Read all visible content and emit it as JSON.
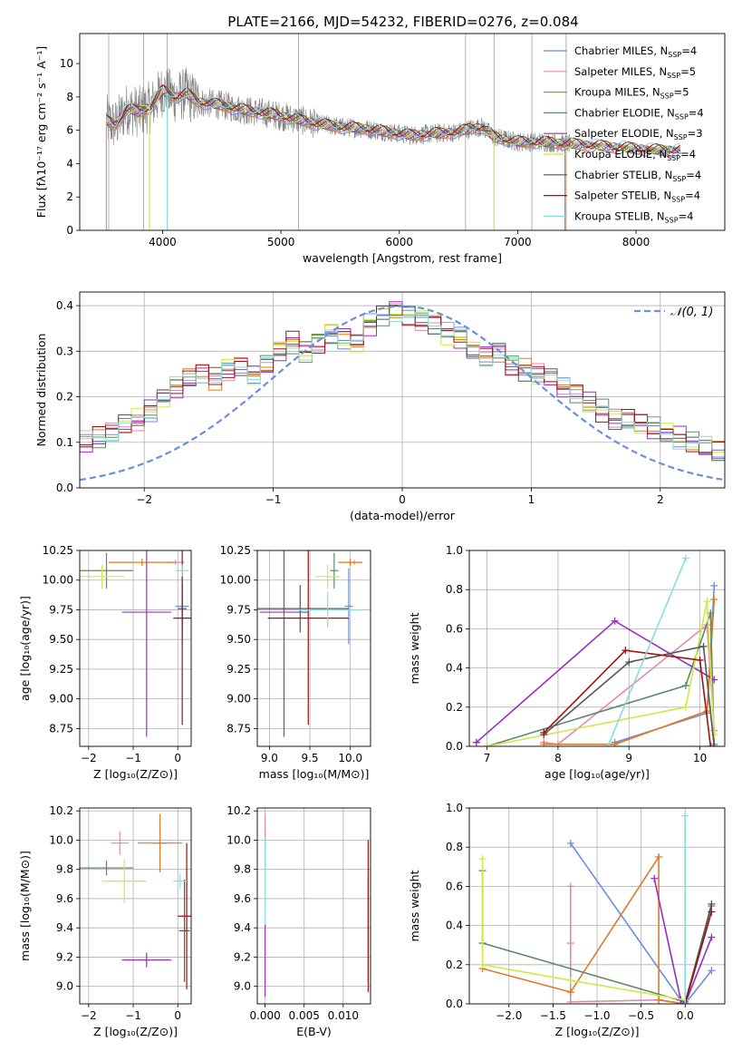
{
  "figure_title": "PLATE=2166, MJD=54232, FIBERID=0276, z=0.084",
  "colors": {
    "Chabrier MILES": "#6a8ee0",
    "Salpeter MILES": "#e08ab0",
    "Kroupa MILES": "#e07a22",
    "Chabrier ELODIE": "#5f8a66",
    "Salpeter ELODIE": "#9a2cc4",
    "Kroupa ELODIE": "#cfe84a",
    "Chabrier STELIB": "#555555",
    "Salpeter STELIB": "#9b1313",
    "Kroupa STELIB": "#86dede",
    "gaussian": "#6a8ee0",
    "data": "#808080"
  },
  "chart_data": [
    {
      "id": "spectrum",
      "type": "line",
      "xlabel": "wavelength [Angstrom, rest frame]",
      "ylabel": "Flux [fλ10⁻¹⁷ erg cm⁻² s⁻¹ A⁻¹]",
      "xlim": [
        3300,
        8750
      ],
      "ylim": [
        0,
        11.8
      ],
      "xticks": [
        4000,
        5000,
        6000,
        7000,
        8000
      ],
      "yticks": [
        0,
        2,
        4,
        6,
        8,
        10
      ],
      "legend_position": "right",
      "legend": [
        {
          "name": "Chabrier MILES",
          "nssp": "4"
        },
        {
          "name": "Salpeter MILES",
          "nssp": "5"
        },
        {
          "name": "Kroupa MILES",
          "nssp": "5"
        },
        {
          "name": "Chabrier ELODIE",
          "nssp": "4"
        },
        {
          "name": "Salpeter ELODIE",
          "nssp": "3"
        },
        {
          "name": "Kroupa ELODIE",
          "nssp": "4"
        },
        {
          "name": "Chabrier STELIB",
          "nssp": "4"
        },
        {
          "name": "Salpeter STELIB",
          "nssp": "4"
        },
        {
          "name": "Kroupa STELIB",
          "nssp": "4"
        }
      ],
      "model_continuum": {
        "x": [
          3520,
          3600,
          3700,
          3800,
          3900,
          4000,
          4100,
          4200,
          4300,
          4500,
          4700,
          4900,
          5100,
          5300,
          5500,
          5700,
          5900,
          6100,
          6300,
          6500,
          6600,
          6700,
          6800,
          7000,
          7200,
          7400,
          7600,
          7800,
          8000,
          8200
        ],
        "y": [
          6.6,
          6.3,
          7.3,
          7.1,
          7.4,
          8.4,
          8.0,
          8.2,
          7.7,
          7.5,
          7.2,
          7.0,
          6.7,
          6.4,
          6.2,
          6.1,
          5.9,
          5.7,
          5.8,
          5.9,
          6.1,
          6.2,
          5.6,
          5.3,
          5.3,
          5.2,
          5.1,
          5.0,
          4.9,
          4.8
        ]
      }
    },
    {
      "id": "residuals",
      "type": "step",
      "xlabel": "(data-model)/error",
      "ylabel": "Normed distribution",
      "xlim": [
        -2.5,
        2.5
      ],
      "ylim": [
        0,
        0.43
      ],
      "xticks": [
        -2,
        -1,
        0,
        1,
        2
      ],
      "yticks": [
        0.0,
        0.1,
        0.2,
        0.3,
        0.4
      ],
      "bin_width": 0.1,
      "gaussian_label": "𝒩(0, 1)",
      "legend_position": "top-right",
      "base_histogram": [
        0.07,
        0.08,
        0.09,
        0.08,
        0.09,
        0.1,
        0.11,
        0.12,
        0.14,
        0.15,
        0.17,
        0.2,
        0.22,
        0.24,
        0.25,
        0.24,
        0.26,
        0.27,
        0.25,
        0.27,
        0.3,
        0.32,
        0.3,
        0.32,
        0.34,
        0.33,
        0.32,
        0.36,
        0.38,
        0.39,
        0.38,
        0.37,
        0.36,
        0.34,
        0.33,
        0.3,
        0.29,
        0.3,
        0.27,
        0.26,
        0.25,
        0.24,
        0.22,
        0.21,
        0.19,
        0.17,
        0.15,
        0.15,
        0.14,
        0.13,
        0.12,
        0.11,
        0.1,
        0.09,
        0.08,
        0.07,
        0.06,
        0.05,
        0.05,
        0.04
      ]
    },
    {
      "id": "age-vs-Z",
      "type": "errorbar",
      "xlabel": "Z [log₁₀(Z/Z⊙)]",
      "ylabel": "age  [log₁₀(age/yr)]",
      "xlim": [
        -2.2,
        0.3
      ],
      "ylim": [
        8.6,
        10.25
      ],
      "xticks": [
        -2,
        -1,
        0
      ],
      "yticks": [
        8.75,
        9.0,
        9.25,
        9.5,
        9.75,
        10.0,
        10.25
      ],
      "points": [
        {
          "series": "Chabrier MILES",
          "x": 0.1,
          "xerr": 0.15,
          "y": 9.78,
          "yerr": 0.32
        },
        {
          "series": "Salpeter MILES",
          "x": -0.05,
          "xerr": 0.2,
          "y": 10.15,
          "yerr": 0.02
        },
        {
          "series": "Kroupa MILES",
          "x": -0.8,
          "xerr": 0.75,
          "y": 10.15,
          "yerr": 0.03
        },
        {
          "series": "Chabrier ELODIE",
          "x": -1.6,
          "xerr": 0.6,
          "y": 10.08,
          "yerr": 0.15
        },
        {
          "series": "Salpeter ELODIE",
          "x": -0.7,
          "xerr": 0.55,
          "y": 9.73,
          "yerr": 1.05
        },
        {
          "series": "Kroupa ELODIE",
          "x": -1.7,
          "xerr": 0.5,
          "y": 10.03,
          "yerr": 0.1
        },
        {
          "series": "Chabrier STELIB",
          "x": 0.1,
          "xerr": 0.1,
          "y": 9.76,
          "yerr": 0.2
        },
        {
          "series": "Salpeter STELIB",
          "x": 0.1,
          "xerr": 0.2,
          "y": 9.68,
          "yerr": 0.9
        },
        {
          "series": "Kroupa STELIB",
          "x": 0.1,
          "xerr": 0.15,
          "y": 10.08,
          "yerr": 0.05
        }
      ]
    },
    {
      "id": "age-vs-mass",
      "type": "errorbar",
      "xlabel": "mass [log₁₀(M/M⊙)]",
      "ylabel": "",
      "xlim": [
        8.85,
        10.25
      ],
      "ylim": [
        8.6,
        10.25
      ],
      "xticks": [
        9.0,
        9.5,
        10.0
      ],
      "yticks": [
        8.75,
        9.0,
        9.25,
        9.5,
        9.75,
        10.0,
        10.25
      ],
      "points": [
        {
          "series": "Chabrier MILES",
          "x": 9.98,
          "xerr": 0.05,
          "y": 9.78,
          "yerr": 0.32
        },
        {
          "series": "Salpeter MILES",
          "x": 10.05,
          "xerr": 0.08,
          "y": 10.15,
          "yerr": 0.02
        },
        {
          "series": "Kroupa MILES",
          "x": 10.0,
          "xerr": 0.15,
          "y": 10.15,
          "yerr": 0.03
        },
        {
          "series": "Chabrier ELODIE",
          "x": 9.8,
          "xerr": 0.05,
          "y": 10.08,
          "yerr": 0.15
        },
        {
          "series": "Salpeter ELODIE",
          "x": 9.18,
          "xerr": 0.3,
          "y": 9.73,
          "yerr": 1.05
        },
        {
          "series": "Kroupa ELODIE",
          "x": 9.72,
          "xerr": 0.15,
          "y": 10.03,
          "yerr": 0.1
        },
        {
          "series": "Chabrier STELIB",
          "x": 9.38,
          "xerr": 0.6,
          "y": 9.76,
          "yerr": 0.2
        },
        {
          "series": "Salpeter STELIB",
          "x": 9.48,
          "xerr": 0.5,
          "y": 9.68,
          "yerr": 0.9
        },
        {
          "series": "Kroupa STELIB",
          "x": 9.72,
          "xerr": 0.4,
          "y": 9.75,
          "yerr": 0.15
        }
      ]
    },
    {
      "id": "weight-vs-age",
      "type": "line",
      "xlabel": "age  [log₁₀(age/yr)]",
      "ylabel": "mass weight",
      "xlim": [
        6.75,
        10.35
      ],
      "ylim": [
        0,
        1.0
      ],
      "xticks": [
        7,
        8,
        9,
        10
      ],
      "yticks": [
        0.0,
        0.2,
        0.4,
        0.6,
        0.8,
        1.0
      ],
      "series": [
        {
          "name": "Chabrier MILES",
          "x": [
            8.8,
            10.1,
            10.2
          ],
          "y": [
            0.02,
            0.17,
            0.82
          ]
        },
        {
          "name": "Salpeter MILES",
          "x": [
            7.8,
            8.0,
            10.1,
            10.2
          ],
          "y": [
            0.02,
            0.01,
            0.62,
            0.08
          ]
        },
        {
          "name": "Kroupa MILES",
          "x": [
            7.8,
            8.8,
            10.1,
            10.2
          ],
          "y": [
            0.01,
            0.01,
            0.18,
            0.75
          ]
        },
        {
          "name": "Chabrier ELODIE",
          "x": [
            7.0,
            9.8,
            10.15,
            10.2
          ],
          "y": [
            0.0,
            0.31,
            0.68,
            0.01
          ]
        },
        {
          "name": "Salpeter ELODIE",
          "x": [
            6.85,
            8.8,
            10.2
          ],
          "y": [
            0.02,
            0.64,
            0.34
          ]
        },
        {
          "name": "Kroupa ELODIE",
          "x": [
            7.0,
            9.8,
            10.1,
            10.2
          ],
          "y": [
            0.0,
            0.2,
            0.74,
            0.06
          ]
        },
        {
          "name": "Chabrier STELIB",
          "x": [
            7.8,
            9.0,
            10.05,
            10.2
          ],
          "y": [
            0.06,
            0.43,
            0.51,
            0.0
          ]
        },
        {
          "name": "Salpeter STELIB",
          "x": [
            7.8,
            8.95,
            10.0,
            10.15
          ],
          "y": [
            0.07,
            0.49,
            0.44,
            0.0
          ]
        },
        {
          "name": "Kroupa STELIB",
          "x": [
            8.7,
            9.8
          ],
          "y": [
            0.0,
            0.96
          ]
        }
      ]
    },
    {
      "id": "mass-vs-Z",
      "type": "errorbar",
      "xlabel": "Z [log₁₀(Z/Z⊙)]",
      "ylabel": "mass [log₁₀(M/M⊙)]",
      "xlim": [
        -2.2,
        0.3
      ],
      "ylim": [
        8.88,
        10.22
      ],
      "xticks": [
        -2,
        -1,
        0
      ],
      "yticks": [
        9.0,
        9.2,
        9.4,
        9.6,
        9.8,
        10.0,
        10.2
      ],
      "points": [
        {
          "series": "Chabrier MILES",
          "x": -0.4,
          "xerr": 0.15,
          "y": 9.98,
          "yerr": 0.05
        },
        {
          "series": "Salpeter MILES",
          "x": -1.3,
          "xerr": 0.2,
          "y": 9.98,
          "yerr": 0.08
        },
        {
          "series": "Kroupa MILES",
          "x": -0.4,
          "xerr": 0.5,
          "y": 9.98,
          "yerr": 0.2
        },
        {
          "series": "Chabrier ELODIE",
          "x": -1.6,
          "xerr": 0.6,
          "y": 9.81,
          "yerr": 0.05
        },
        {
          "series": "Salpeter ELODIE",
          "x": -0.7,
          "xerr": 0.55,
          "y": 9.18,
          "yerr": 0.05
        },
        {
          "series": "Kroupa ELODIE",
          "x": -1.2,
          "xerr": 0.5,
          "y": 9.72,
          "yerr": 0.15
        },
        {
          "series": "Chabrier STELIB",
          "x": 0.15,
          "xerr": 0.12,
          "y": 9.38,
          "yerr": 0.35
        },
        {
          "series": "Salpeter STELIB",
          "x": 0.2,
          "xerr": 0.2,
          "y": 9.48,
          "yerr": 0.5
        },
        {
          "series": "Kroupa STELIB",
          "x": 0.05,
          "xerr": 0.15,
          "y": 9.72,
          "yerr": 0.05
        }
      ]
    },
    {
      "id": "mass-vs-ebv",
      "type": "errorbar",
      "xlabel": "E(B-V)",
      "ylabel": "",
      "xlim": [
        -0.001,
        0.0135
      ],
      "ylim": [
        8.88,
        10.22
      ],
      "xticks": [
        0.0,
        0.005,
        0.01
      ],
      "xticklabels": [
        "0.000",
        "0.005",
        "0.010"
      ],
      "yticks": [
        9.0,
        9.2,
        9.4,
        9.6,
        9.8,
        10.0,
        10.2
      ],
      "points": [
        {
          "series": "Chabrier MILES",
          "x": 0.0,
          "xerr": 0,
          "y": 9.98,
          "yerr": 0.05
        },
        {
          "series": "Salpeter MILES",
          "x": 0.0,
          "xerr": 0,
          "y": 9.98,
          "yerr": 0.2
        },
        {
          "series": "Salpeter ELODIE",
          "x": 0.0,
          "xerr": 0,
          "y": 9.18,
          "yerr": 0.25
        },
        {
          "series": "Kroupa ELODIE",
          "x": 0.0,
          "xerr": 0,
          "y": 9.72,
          "yerr": 0.15
        },
        {
          "series": "Kroupa STELIB",
          "x": 0.0,
          "xerr": 0,
          "y": 9.72,
          "yerr": 0.3
        },
        {
          "series": "Chabrier STELIB",
          "x": 0.0132,
          "xerr": 0,
          "y": 9.38,
          "yerr": 0.35
        },
        {
          "series": "Salpeter STELIB",
          "x": 0.0132,
          "xerr": 0,
          "y": 9.48,
          "yerr": 0.52
        }
      ]
    },
    {
      "id": "weight-vs-Z",
      "type": "line",
      "xlabel": "Z [log₁₀(Z/Z⊙)]",
      "ylabel": "mass weight",
      "xlim": [
        -2.45,
        0.45
      ],
      "ylim": [
        0,
        1.0
      ],
      "xticks": [
        -2.0,
        -1.5,
        -1.0,
        -0.5,
        0.0
      ],
      "yticks": [
        0.0,
        0.2,
        0.4,
        0.6,
        0.8,
        1.0
      ],
      "series": [
        {
          "name": "Chabrier MILES",
          "x": [
            -1.3,
            -0.05,
            0.0,
            0.3
          ],
          "y": [
            0.82,
            0.02,
            0.0,
            0.17
          ]
        },
        {
          "name": "Salpeter MILES",
          "x": [
            -1.3,
            -1.3,
            -1.3,
            -0.3,
            0.0
          ],
          "y": [
            0.31,
            0.6,
            0.01,
            0.02,
            0.0
          ]
        },
        {
          "name": "Kroupa MILES",
          "x": [
            -2.3,
            -1.3,
            -0.3,
            -0.3,
            0.0
          ],
          "y": [
            0.18,
            0.06,
            0.75,
            0.02,
            0.0
          ]
        },
        {
          "name": "Chabrier ELODIE",
          "x": [
            -2.3,
            -2.3,
            0.0,
            0.3
          ],
          "y": [
            0.68,
            0.31,
            0.01,
            0.5
          ]
        },
        {
          "name": "Salpeter ELODIE",
          "x": [
            -0.35,
            -0.05,
            0.0,
            0.3
          ],
          "y": [
            0.64,
            0.02,
            0.0,
            0.34
          ]
        },
        {
          "name": "Kroupa ELODIE",
          "x": [
            -2.3,
            -2.3,
            -2.3,
            -1.3,
            0.0
          ],
          "y": [
            0.74,
            0.2,
            0.2,
            0.12,
            0.02
          ]
        },
        {
          "name": "Chabrier STELIB",
          "x": [
            0.0,
            0.3
          ],
          "y": [
            0.0,
            0.51
          ]
        },
        {
          "name": "Salpeter STELIB",
          "x": [
            0.0,
            0.3
          ],
          "y": [
            0.0,
            0.47
          ]
        },
        {
          "name": "Kroupa STELIB",
          "x": [
            0.0,
            0.0
          ],
          "y": [
            0.0,
            0.96
          ]
        }
      ]
    }
  ]
}
